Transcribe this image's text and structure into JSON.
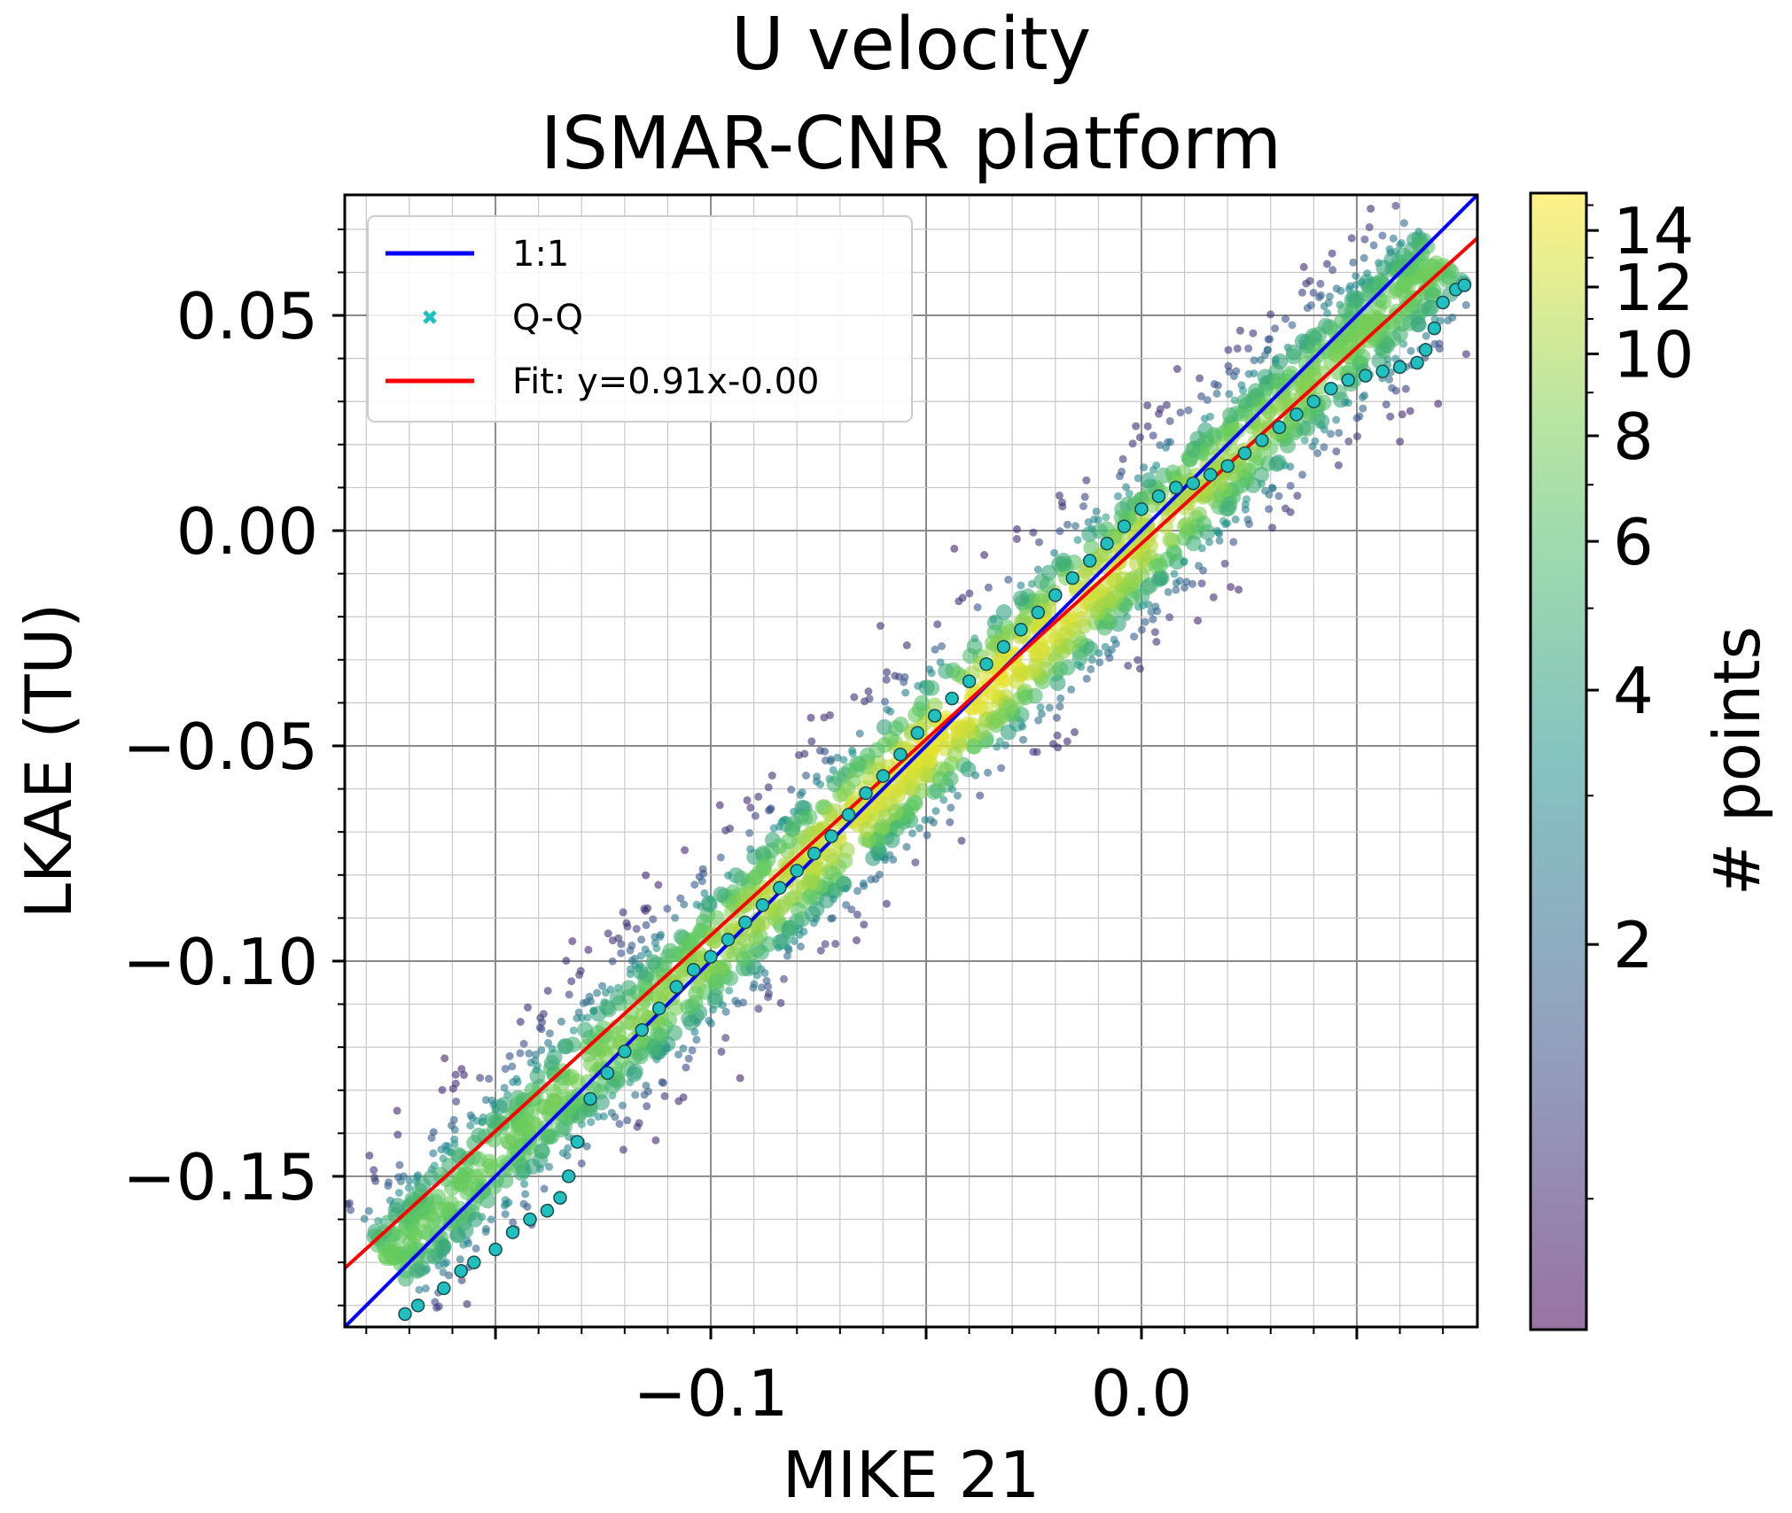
{
  "chart_data": {
    "type": "scatter",
    "title_lines": [
      "U velocity",
      "ISMAR-CNR platform"
    ],
    "xlabel": "MIKE 21",
    "ylabel": "LKAE (TU)",
    "xlim": [
      -0.185,
      0.078
    ],
    "ylim": [
      -0.185,
      0.078
    ],
    "xticks": [
      -0.1,
      0.0
    ],
    "xtick_labels": [
      "−0.1",
      "0.0"
    ],
    "yticks": [
      0.05,
      0.0,
      -0.05,
      -0.1,
      -0.15
    ],
    "ytick_labels": [
      "0.05",
      "0.00",
      "−0.05",
      "−0.10",
      "−0.15"
    ],
    "grid": true,
    "legend_position": "upper-left",
    "legend": [
      {
        "label": "1:1",
        "kind": "line",
        "color": "#0000ff"
      },
      {
        "label": "Q-Q",
        "kind": "marker",
        "color": "#20c0c0"
      },
      {
        "label": "Fit: y=0.91x-0.00",
        "kind": "line",
        "color": "#ff0000"
      }
    ],
    "identity_line": {
      "name": "1:1",
      "slope": 1.0,
      "intercept": 0.0
    },
    "fit_line": {
      "name": "Fit",
      "slope": 0.91,
      "intercept": -0.003
    },
    "qq_points": [
      [
        -0.171,
        -0.182
      ],
      [
        -0.168,
        -0.18
      ],
      [
        -0.162,
        -0.176
      ],
      [
        -0.158,
        -0.172
      ],
      [
        -0.155,
        -0.17
      ],
      [
        -0.15,
        -0.167
      ],
      [
        -0.146,
        -0.163
      ],
      [
        -0.142,
        -0.16
      ],
      [
        -0.138,
        -0.158
      ],
      [
        -0.135,
        -0.155
      ],
      [
        -0.133,
        -0.15
      ],
      [
        -0.131,
        -0.142
      ],
      [
        -0.128,
        -0.132
      ],
      [
        -0.124,
        -0.126
      ],
      [
        -0.12,
        -0.121
      ],
      [
        -0.116,
        -0.116
      ],
      [
        -0.112,
        -0.111
      ],
      [
        -0.108,
        -0.106
      ],
      [
        -0.104,
        -0.102
      ],
      [
        -0.1,
        -0.099
      ],
      [
        -0.096,
        -0.095
      ],
      [
        -0.092,
        -0.091
      ],
      [
        -0.088,
        -0.087
      ],
      [
        -0.084,
        -0.083
      ],
      [
        -0.08,
        -0.079
      ],
      [
        -0.076,
        -0.075
      ],
      [
        -0.072,
        -0.071
      ],
      [
        -0.068,
        -0.066
      ],
      [
        -0.064,
        -0.061
      ],
      [
        -0.06,
        -0.057
      ],
      [
        -0.056,
        -0.052
      ],
      [
        -0.052,
        -0.047
      ],
      [
        -0.048,
        -0.043
      ],
      [
        -0.044,
        -0.039
      ],
      [
        -0.04,
        -0.035
      ],
      [
        -0.036,
        -0.031
      ],
      [
        -0.032,
        -0.027
      ],
      [
        -0.028,
        -0.023
      ],
      [
        -0.024,
        -0.019
      ],
      [
        -0.02,
        -0.015
      ],
      [
        -0.016,
        -0.011
      ],
      [
        -0.012,
        -0.007
      ],
      [
        -0.008,
        -0.003
      ],
      [
        -0.004,
        0.001
      ],
      [
        0.0,
        0.005
      ],
      [
        0.004,
        0.008
      ],
      [
        0.008,
        0.01
      ],
      [
        0.012,
        0.011
      ],
      [
        0.016,
        0.013
      ],
      [
        0.02,
        0.015
      ],
      [
        0.024,
        0.018
      ],
      [
        0.028,
        0.021
      ],
      [
        0.032,
        0.024
      ],
      [
        0.036,
        0.027
      ],
      [
        0.04,
        0.03
      ],
      [
        0.044,
        0.033
      ],
      [
        0.048,
        0.035
      ],
      [
        0.052,
        0.036
      ],
      [
        0.056,
        0.037
      ],
      [
        0.06,
        0.038
      ],
      [
        0.064,
        0.039
      ],
      [
        0.066,
        0.042
      ],
      [
        0.068,
        0.047
      ],
      [
        0.07,
        0.053
      ],
      [
        0.073,
        0.056
      ],
      [
        0.075,
        0.057
      ]
    ],
    "density_scatter": {
      "description": "point cloud colored by local point count",
      "colorbar_label": "# points",
      "colorbar_scale": "log",
      "colorbar_range": [
        0.7,
        15.5
      ],
      "colorbar_ticks": [
        2,
        4,
        6,
        8,
        10,
        12,
        14
      ],
      "colormap": [
        "#440154",
        "#3b528b",
        "#21918c",
        "#5ec962",
        "#fde725"
      ],
      "noise_sd": 0.03,
      "n_points": 2200
    }
  }
}
